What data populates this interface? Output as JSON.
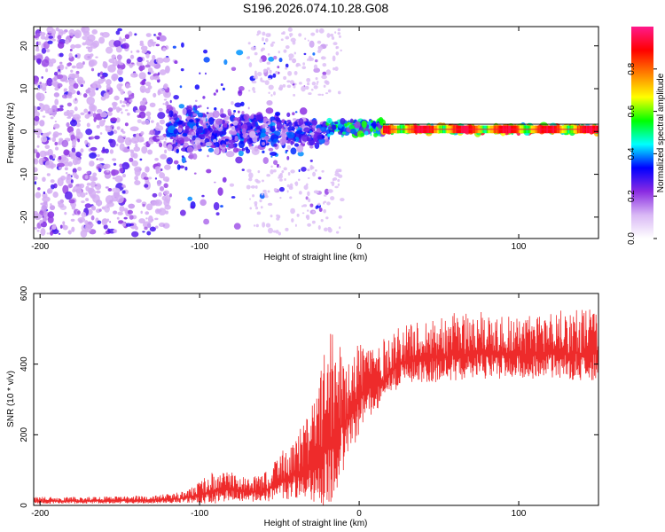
{
  "title": "S196.2026.074.10.28.G08",
  "colors": {
    "snr_line": "#ee2b2b",
    "dot_strong": "#6a00ff",
    "dot_weak": "#d9b8f5",
    "axis": "#000000"
  },
  "chart_data": [
    {
      "type": "heatmap",
      "id": "spectrogram",
      "xlabel": "Height of straight line (km)",
      "ylabel": "Frequency (Hz)",
      "xlim": [
        -204,
        150
      ],
      "ylim": [
        -25,
        24.5
      ],
      "xticks": [
        -200,
        -100,
        0,
        100
      ],
      "xtick_labels": [
        "-200",
        "-100",
        "0",
        "100"
      ],
      "yticks": [
        -20,
        -10,
        0,
        10,
        20
      ],
      "ytick_labels": [
        "-20",
        "-10",
        "0",
        "10",
        "20"
      ],
      "colorbar": {
        "label": "Normalized spectral amplitude",
        "range": [
          0,
          1
        ],
        "ticks": [
          0.0,
          0.2,
          0.4,
          0.6,
          0.8
        ],
        "tick_labels": [
          "0.0",
          "0.2",
          "0.4",
          "0.6",
          "0.8"
        ],
        "colormap": [
          "#ffffff",
          "#d9b8f5",
          "#8a2be2",
          "#0000ff",
          "#00ffff",
          "#00ff00",
          "#ffff00",
          "#ff8000",
          "#ff0000",
          "#ff1a8c"
        ]
      },
      "tonal_line": {
        "x_start": 15,
        "x_end": 150,
        "freq_hz": 0.5,
        "peak_amplitude": 0.95
      },
      "regions": [
        {
          "name": "scattered",
          "x_range": [
            -204,
            -120
          ],
          "freq_spread_hz": 24,
          "amplitude_range": [
            0.1,
            0.3
          ]
        },
        {
          "name": "dense-cluster",
          "x_range": [
            -120,
            -20
          ],
          "freq_spread_hz": 7,
          "amplitude_range": [
            0.1,
            0.4
          ]
        },
        {
          "name": "converging",
          "x_range": [
            -20,
            15
          ],
          "freq_spread_hz": 2,
          "amplitude_range": [
            0.2,
            0.6
          ]
        },
        {
          "name": "steady-tone",
          "x_range": [
            15,
            150
          ],
          "freq_spread_hz": 1,
          "amplitude_range": [
            0.4,
            0.95
          ]
        }
      ]
    },
    {
      "type": "line",
      "id": "snr",
      "xlabel": "Height of straight line (km)",
      "ylabel": "SNR (10 * v/v)",
      "xlim": [
        -204,
        150
      ],
      "ylim": [
        0,
        600
      ],
      "xticks": [
        -200,
        -100,
        0,
        100
      ],
      "xtick_labels": [
        "-200",
        "-100",
        "0",
        "100"
      ],
      "yticks": [
        0,
        200,
        400,
        600
      ],
      "ytick_labels": [
        "0",
        "200",
        "400",
        "600"
      ],
      "series": [
        {
          "name": "SNR",
          "x": [
            -204,
            -180,
            -150,
            -125,
            -110,
            -100,
            -90,
            -80,
            -70,
            -60,
            -50,
            -40,
            -30,
            -25,
            -20,
            -15,
            -10,
            -5,
            0,
            5,
            10,
            15,
            20,
            25,
            30,
            40,
            50,
            60,
            80,
            100,
            120,
            140,
            150
          ],
          "base": [
            12,
            12,
            13,
            15,
            20,
            30,
            40,
            45,
            35,
            40,
            60,
            90,
            110,
            140,
            170,
            200,
            230,
            270,
            300,
            330,
            340,
            350,
            380,
            400,
            410,
            415,
            420,
            425,
            430,
            425,
            430,
            430,
            430
          ],
          "spread": [
            12,
            12,
            13,
            15,
            20,
            40,
            60,
            50,
            40,
            50,
            80,
            120,
            160,
            230,
            320,
            280,
            220,
            200,
            170,
            140,
            120,
            120,
            110,
            110,
            100,
            110,
            120,
            120,
            120,
            110,
            120,
            130,
            130
          ]
        }
      ]
    }
  ]
}
